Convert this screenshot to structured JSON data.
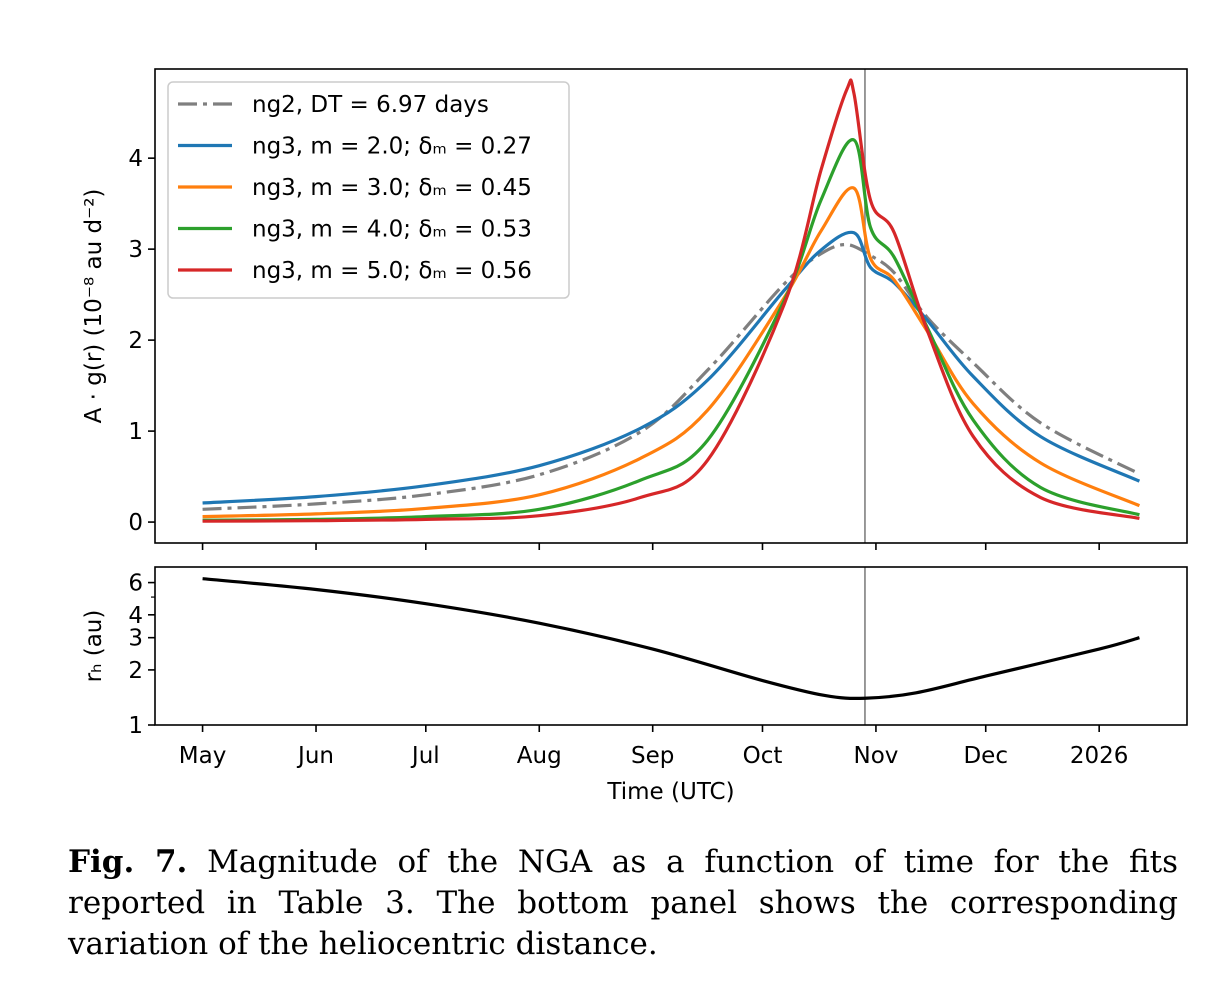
{
  "chart_data": [
    {
      "type": "line",
      "panel": "top",
      "ylabel": "A · g(r) (10⁻⁸ au d⁻²)",
      "xlabel": "",
      "x_unit": "days since 2025-05-01",
      "xlim": [
        -13,
        269
      ],
      "ylim": [
        -0.23,
        4.98
      ],
      "yticks": [
        0,
        1,
        2,
        3,
        4
      ],
      "xticks": [
        0,
        31,
        61,
        92,
        123,
        153,
        184,
        214,
        245
      ],
      "xtick_labels": [
        "May",
        "Jun",
        "Jul",
        "Aug",
        "Sep",
        "Oct",
        "Nov",
        "Dec",
        "2026"
      ],
      "vertical_line_x": 181,
      "legend_position": "top-left",
      "series": [
        {
          "name": "ng2, DT = 6.97 days",
          "color": "#7f7f7f",
          "dash": "dashdot",
          "x": [
            0,
            31,
            61,
            92,
            119.6,
            138,
            159,
            169,
            176,
            182.5,
            189,
            198,
            210.6,
            229,
            256
          ],
          "y": [
            0.14,
            0.2,
            0.3,
            0.52,
            0.99,
            1.67,
            2.62,
            2.95,
            3.05,
            2.93,
            2.74,
            2.25,
            1.75,
            1.09,
            0.53
          ]
        },
        {
          "name": "ng3, m = 2.0; δₘ = 0.27",
          "color": "#1f77b4",
          "dash": "solid",
          "x": [
            0,
            31,
            61,
            92,
            119.6,
            138,
            159,
            169,
            178,
            182.5,
            189,
            198,
            210.6,
            229,
            256
          ],
          "y": [
            0.21,
            0.28,
            0.4,
            0.62,
            1.03,
            1.56,
            2.55,
            2.99,
            3.18,
            2.8,
            2.63,
            2.22,
            1.6,
            0.94,
            0.45
          ]
        },
        {
          "name": "ng3, m = 3.0; δₘ = 0.45",
          "color": "#ff7f0e",
          "dash": "solid",
          "x": [
            0,
            31,
            61,
            92,
            119.6,
            138,
            159,
            169,
            178,
            182.5,
            189,
            198,
            210.6,
            229,
            256
          ],
          "y": [
            0.06,
            0.09,
            0.15,
            0.3,
            0.7,
            1.23,
            2.47,
            3.2,
            3.67,
            2.9,
            2.66,
            2.1,
            1.3,
            0.65,
            0.18
          ]
        },
        {
          "name": "ng3, m = 4.0; δₘ = 0.53",
          "color": "#2ca02c",
          "dash": "solid",
          "x": [
            0,
            31,
            61,
            92,
            119.6,
            138,
            159,
            169,
            178,
            182.5,
            189,
            198,
            210.6,
            229,
            256
          ],
          "y": [
            0.02,
            0.03,
            0.06,
            0.14,
            0.46,
            0.9,
            2.44,
            3.54,
            4.2,
            3.24,
            2.91,
            2.14,
            1.12,
            0.38,
            0.08
          ]
        },
        {
          "name": "ng3, m = 5.0; δₘ = 0.56",
          "color": "#d62728",
          "dash": "solid",
          "x": [
            0,
            31,
            61,
            92,
            119.6,
            138,
            159,
            169,
            176,
            178,
            182.5,
            189,
            198,
            210.6,
            229,
            256
          ],
          "y": [
            0.01,
            0.015,
            0.03,
            0.07,
            0.27,
            0.68,
            2.4,
            3.87,
            4.75,
            4.71,
            3.54,
            3.18,
            2.11,
            0.94,
            0.27,
            0.04
          ]
        }
      ]
    },
    {
      "type": "line",
      "panel": "bottom",
      "ylabel": "rₕ (au)",
      "xlabel": "Time (UTC)",
      "yscale": "log",
      "ylim": [
        1,
        7.3
      ],
      "yticks": [
        1,
        2,
        3,
        4,
        6
      ],
      "ytick_labels": [
        "1",
        "2",
        "3",
        "4",
        "6"
      ],
      "xlim": [
        -13,
        269
      ],
      "xticks": [
        0,
        31,
        61,
        92,
        123,
        153,
        184,
        214,
        245
      ],
      "xtick_labels": [
        "May",
        "Jun",
        "Jul",
        "Aug",
        "Sep",
        "Oct",
        "Nov",
        "Dec",
        "2026"
      ],
      "vertical_line_x": 181,
      "series": [
        {
          "name": "r_h",
          "color": "#000000",
          "x": [
            0,
            31,
            61,
            92,
            123,
            153,
            170,
            181,
            195,
            214,
            245,
            256
          ],
          "y": [
            6.3,
            5.5,
            4.6,
            3.6,
            2.6,
            1.75,
            1.45,
            1.4,
            1.5,
            1.85,
            2.6,
            3.0
          ]
        }
      ]
    }
  ],
  "caption": {
    "label": "Fig. 7.",
    "text": "Magnitude of the NGA as a function of time for the fits reported in Table 3. The bottom panel shows the corresponding variation of the heliocentric distance."
  }
}
